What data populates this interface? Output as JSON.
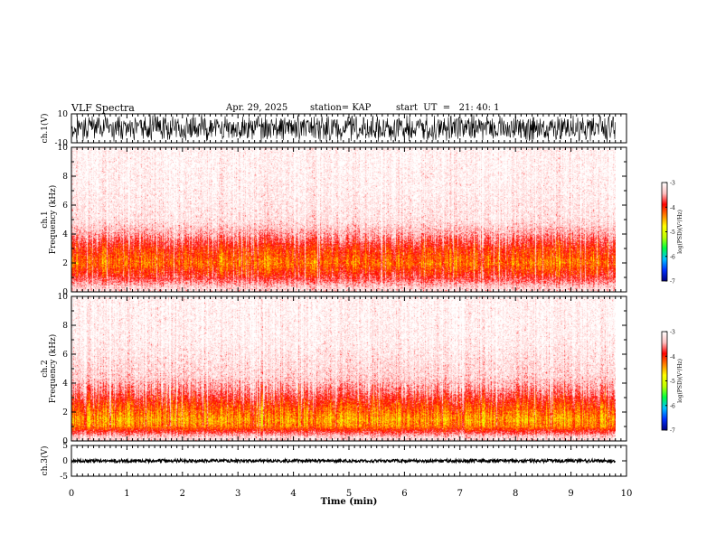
{
  "header": {
    "title": "VLF Spectra",
    "date": "Apr. 29, 2025",
    "station": "station= KAP",
    "start": "start  UT  =   21: 40: 1"
  },
  "chart_data": [
    {
      "type": "line",
      "panel": "ch1-waveform",
      "ylabel": "ch.1(V)",
      "ylim": [
        -10,
        10
      ],
      "yticks": [
        "10",
        "-10"
      ],
      "xlim": [
        0,
        10
      ],
      "data_xmax": 9.8,
      "description_values": {
        "amplitude_min": -10,
        "amplitude_max": 10
      }
    },
    {
      "type": "heatmap",
      "panel": "ch1-spectrogram",
      "ylabel": "ch.1\nFrequency  (kHz)",
      "ylabel_line1": "ch.1",
      "ylabel_line2": "Frequency  (kHz)",
      "ylim": [
        0,
        10
      ],
      "yticks": [
        "0",
        "2",
        "4",
        "6",
        "8",
        "10"
      ],
      "xlim": [
        0,
        10
      ],
      "data_xmax": 9.8,
      "colorbar": {
        "label": "log(PSD)(V²/Hz)",
        "ticks": [
          "-3",
          "-4",
          "-5",
          "-6",
          "-7"
        ],
        "range": [
          -7,
          -3
        ]
      },
      "profile_kHz_logPSD": [
        [
          0.3,
          -3.3
        ],
        [
          1,
          -3.8
        ],
        [
          2,
          -4.3
        ],
        [
          3,
          -4.0
        ],
        [
          4,
          -3.5
        ],
        [
          5,
          -3.2
        ],
        [
          7,
          -3.1
        ],
        [
          10,
          -3.05
        ]
      ]
    },
    {
      "type": "heatmap",
      "panel": "ch2-spectrogram",
      "ylabel": "ch.2\nFrequency  (kHz)",
      "ylabel_line1": "ch.2",
      "ylabel_line2": "Frequency  (kHz)",
      "ylim": [
        0,
        10
      ],
      "yticks": [
        "0",
        "2",
        "4",
        "6",
        "8",
        "10"
      ],
      "xlim": [
        0,
        10
      ],
      "data_xmax": 9.8,
      "colorbar": {
        "label": "log(PSD)(V²/Hz)",
        "ticks": [
          "-3",
          "-4",
          "-5",
          "-6",
          "-7"
        ],
        "range": [
          -7,
          -3
        ]
      },
      "profile_kHz_logPSD": [
        [
          0.3,
          -3.3
        ],
        [
          1,
          -4.3
        ],
        [
          1.5,
          -4.5
        ],
        [
          2.5,
          -4.1
        ],
        [
          3.5,
          -3.6
        ],
        [
          4.5,
          -3.3
        ],
        [
          7,
          -3.1
        ],
        [
          10,
          -3.05
        ]
      ]
    },
    {
      "type": "line",
      "panel": "ch3-waveform",
      "ylabel": "ch.3(V)",
      "ylim": [
        -5,
        5
      ],
      "yticks": [
        "5",
        "0",
        "-5"
      ],
      "xlim": [
        0,
        10
      ],
      "data_xmax": 9.8,
      "description_values": {
        "level": 0,
        "amplitude": 0.5
      }
    }
  ],
  "xaxis": {
    "label": "Time  (min)",
    "ticks": [
      "0",
      "1",
      "2",
      "3",
      "4",
      "5",
      "6",
      "7",
      "8",
      "9",
      "10"
    ]
  },
  "colors": {
    "background": "#ffffff",
    "trace": "#000000",
    "colormap": [
      "#000080",
      "#0030ff",
      "#00c0ff",
      "#00ff40",
      "#c0ff00",
      "#ffff00",
      "#ff8000",
      "#ff0000",
      "#ffc0c0",
      "#ffffff"
    ]
  }
}
